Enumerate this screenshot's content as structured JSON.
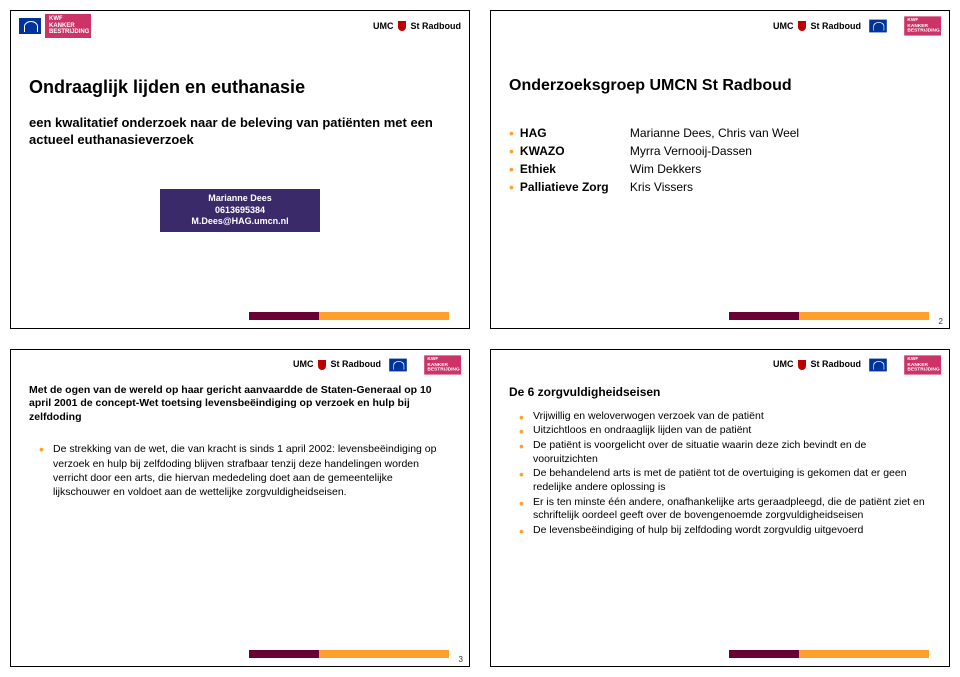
{
  "brand": {
    "kwf_line1": "KWF",
    "kwf_line2": "KANKER",
    "kwf_line3": "BESTRIJDING",
    "umc_prefix": "UMC",
    "umc_suffix": "St Radboud"
  },
  "slide1": {
    "title": "Ondraaglijk lijden en euthanasie",
    "subtitle": "een kwalitatief onderzoek naar de beleving van patiënten met een actueel euthanasieverzoek",
    "author_name": "Marianne Dees",
    "author_phone": "0613695384",
    "author_email": "M.Dees@HAG.umcn.nl"
  },
  "slide2": {
    "title": "Onderzoeksgroep UMCN St Radboud",
    "rows": [
      {
        "k": "HAG",
        "v": "Marianne Dees, Chris van Weel"
      },
      {
        "k": "KWAZO",
        "v": "Myrra Vernooij-Dassen"
      },
      {
        "k": "Ethiek",
        "v": "Wim Dekkers"
      },
      {
        "k": "Palliatieve Zorg",
        "v": "Kris Vissers"
      }
    ],
    "page": "2"
  },
  "slide3": {
    "heading": "Met de ogen van de wereld op haar gericht aanvaardde de Staten-Generaal op 10 april 2001 de concept-Wet toetsing levensbeëindiging op verzoek en hulp bij zelfdoding",
    "bullet": "De strekking van de wet, die van kracht is sinds 1 april 2002: levensbeëindiging op verzoek en hulp bij zelfdoding blijven strafbaar tenzij deze handelingen worden verricht door een arts, die hiervan mededeling doet aan de gemeentelijke lijkschouwer en voldoet aan de wettelijke zorgvuldigheidseisen.",
    "page": "3"
  },
  "slide4": {
    "title": "De 6 zorgvuldigheidseisen",
    "bullets": [
      "Vrijwillig en weloverwogen verzoek van de patiënt",
      "Uitzichtloos en ondraaglijk lijden van de patiënt",
      "De patiënt is voorgelicht over de situatie waarin deze zich bevindt en de vooruitzichten",
      "De behandelend arts is met de patiënt tot de overtuiging is gekomen dat er geen redelijke andere oplossing is",
      "Er is ten minste één andere, onafhankelijke arts geraadpleegd, die de patiënt ziet en schriftelijk oordeel geeft over de bovengenoemde zorgvuldigheidseisen",
      "De levensbeëindiging of hulp bij zelfdoding wordt zorgvuldig uitgevoerd"
    ]
  },
  "colors": {
    "accent_orange": "#fe9f2e",
    "accent_purple": "#6a0033",
    "kwf_pink": "#cc3366",
    "logo_blue": "#003399",
    "author_box": "#3a2a6a"
  }
}
